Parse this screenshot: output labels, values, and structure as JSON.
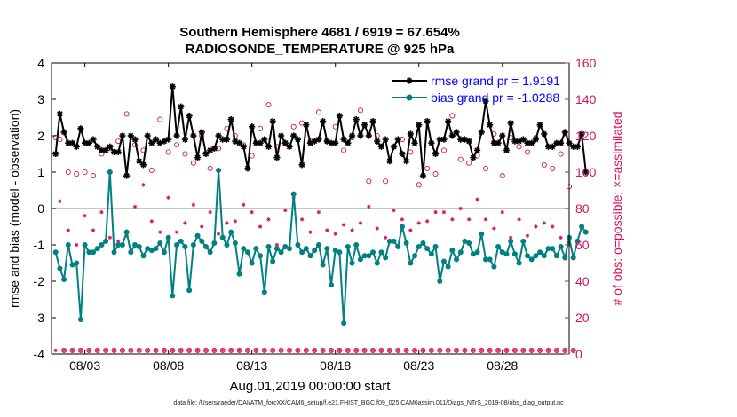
{
  "title_line1": "Southern Hemisphere 4681 / 6919 = 67.654%",
  "title_line2": "RADIOSONDE_TEMPERATURE @ 925 hPa",
  "footer": "data file: /Users/raeder/DAI/ATM_forcXX/CAM6_setup/f.e21.FHIST_BGC.f09_025.CAM6assim.011/Diags_NTrS_2019-08/obs_diag_output.nc",
  "colors": {
    "rmse": "#000000",
    "bias": "#008080",
    "obs": "#d4145a",
    "zero": "#b3b3b3",
    "legend_text": "#0000ff"
  },
  "chart_data": {
    "type": "line",
    "xlabel": "Aug.01,2019 00:00:00 start",
    "ylabel": "rmse and bias (model - observation)",
    "y2label": "# of obs: o=possible; ×=assimilated",
    "x_ticks": [
      {
        "label": "08/03",
        "day": 3
      },
      {
        "label": "08/08",
        "day": 8
      },
      {
        "label": "08/13",
        "day": 13
      },
      {
        "label": "08/18",
        "day": 18
      },
      {
        "label": "08/23",
        "day": 23
      },
      {
        "label": "08/28",
        "day": 28
      }
    ],
    "x_range": [
      1,
      32
    ],
    "ylim": [
      -4,
      4
    ],
    "yticks": [
      -4,
      -3,
      -2,
      -1,
      0,
      1,
      2,
      3,
      4
    ],
    "y2lim": [
      0,
      160
    ],
    "y2ticks": [
      0,
      20,
      40,
      60,
      80,
      100,
      120,
      140,
      160
    ],
    "legend": [
      {
        "label": "rmse grand pr = 1.9191"
      },
      {
        "label": "bias grand pr = -1.0288"
      }
    ],
    "series": [
      {
        "name": "rmse",
        "start_day": 1.25,
        "step_day": 0.25,
        "values": [
          1.5,
          2.6,
          2.1,
          1.8,
          1.8,
          1.7,
          2.2,
          1.8,
          1.8,
          1.9,
          1.7,
          1.6,
          1.6,
          1.7,
          1.55,
          1.55,
          2.0,
          0.9,
          2.0,
          1.9,
          1.3,
          1.2,
          2.0,
          1.8,
          1.9,
          1.8,
          1.85,
          1.9,
          3.35,
          2.0,
          2.8,
          1.9,
          2.55,
          2.0,
          1.4,
          2.1,
          1.5,
          1.6,
          1.65,
          2.0,
          1.9,
          1.9,
          2.45,
          1.85,
          1.8,
          1.7,
          1.1,
          2.25,
          1.8,
          1.8,
          1.9,
          1.7,
          2.4,
          1.4,
          2.0,
          1.8,
          1.7,
          2.0,
          1.9,
          1.2,
          2.3,
          1.8,
          1.85,
          1.9,
          2.4,
          1.85,
          1.8,
          1.8,
          2.55,
          1.9,
          1.8,
          2.0,
          2.45,
          2.0,
          2.3,
          2.0,
          2.4,
          1.85,
          1.7,
          1.9,
          1.3,
          1.7,
          1.9,
          1.5,
          1.3,
          2.05,
          1.8,
          2.3,
          0.9,
          2.4,
          1.8,
          1.5,
          1.9,
          1.9,
          2.4,
          2.0,
          2.1,
          1.9,
          1.9,
          1.85,
          1.4,
          1.6,
          2.1,
          2.95,
          2.3,
          1.8,
          1.8,
          2.0,
          1.6,
          2.35,
          1.85,
          1.85,
          1.9,
          1.8,
          1.8,
          1.9,
          2.3,
          2.05,
          1.7,
          1.7,
          1.8,
          1.8,
          2.1,
          1.8,
          1.7,
          1.7,
          2.05,
          1.0
        ]
      },
      {
        "name": "bias",
        "start_day": 1.25,
        "step_day": 0.25,
        "values": [
          -1.2,
          -1.65,
          -1.95,
          -1.0,
          -1.55,
          -1.5,
          -3.05,
          -1.0,
          -1.2,
          -1.2,
          -1.1,
          -1.0,
          -0.9,
          1.0,
          -1.2,
          -1.0,
          -1.0,
          -0.65,
          -1.2,
          -1.0,
          -1.05,
          -1.3,
          -1.1,
          -1.15,
          -1.1,
          -0.95,
          -1.2,
          -0.8,
          -2.4,
          -1.0,
          -0.9,
          -1.05,
          -2.25,
          -1.0,
          -0.75,
          -0.9,
          -1.05,
          -1.2,
          -0.95,
          1.05,
          -0.8,
          -1.0,
          -0.65,
          -0.95,
          -1.8,
          -1.1,
          -1.2,
          -1.5,
          -1.1,
          -1.3,
          -2.3,
          -1.05,
          -1.45,
          -1.1,
          -1.2,
          -1.05,
          -1.1,
          0.4,
          -1.0,
          -1.2,
          -1.1,
          -1.3,
          -1.15,
          -1.0,
          -1.55,
          -1.1,
          -2.1,
          -1.15,
          -1.2,
          -3.15,
          -1.05,
          -1.5,
          -1.0,
          -1.4,
          -1.3,
          -1.3,
          -1.2,
          -1.5,
          -1.2,
          -1.35,
          -0.9,
          -0.9,
          -1.05,
          -0.5,
          -0.95,
          -1.5,
          -1.3,
          -1.05,
          -0.95,
          -1.1,
          -1.25,
          -1.05,
          -2.0,
          -1.45,
          -1.6,
          -1.15,
          -1.4,
          -1.2,
          -0.9,
          -0.95,
          -1.25,
          -1.2,
          -0.7,
          -1.4,
          -1.4,
          -1.6,
          -1.05,
          -1.2,
          -1.25,
          -0.9,
          -1.25,
          -1.5,
          -0.9,
          -1.3,
          -1.4,
          -1.3,
          -1.2,
          -1.3,
          -1.1,
          -1.1,
          -1.3,
          -1.05,
          -1.35,
          -0.8,
          -1.35,
          -0.9,
          -0.5,
          -0.65
        ]
      },
      {
        "name": "obs_possible",
        "axis": "right",
        "start_day": 1.25,
        "step_day": 0.25,
        "values": [
          119,
          118,
          2,
          100,
          2,
          99,
          2,
          100,
          2,
          98,
          2,
          110,
          2,
          113,
          2,
          117,
          2,
          132,
          2,
          115,
          2,
          112,
          2,
          101,
          2,
          129,
          2,
          111,
          2,
          115,
          2,
          110,
          2,
          105,
          2,
          120,
          2,
          102,
          2,
          113,
          2,
          124,
          2,
          120,
          2,
          115,
          2,
          109,
          2,
          124,
          2,
          137,
          2,
          114,
          2,
          116,
          2,
          125,
          2,
          127,
          2,
          117,
          2,
          133,
          2,
          117,
          2,
          125,
          2,
          112,
          2,
          119,
          2,
          134,
          2,
          95,
          2,
          120,
          2,
          95,
          2,
          114,
          2,
          118,
          2,
          111,
          2,
          93,
          2,
          102,
          2,
          99,
          2,
          112,
          2,
          131,
          2,
          107,
          2,
          105,
          2,
          109,
          2,
          102,
          2,
          121,
          2,
          98,
          2,
          119,
          2,
          114,
          2,
          111,
          2,
          119,
          2,
          104,
          2,
          102,
          2,
          110,
          2,
          92,
          2
        ]
      },
      {
        "name": "obs_assimilated",
        "axis": "right",
        "start_day": 1.25,
        "step_day": 0.25,
        "values": [
          2,
          84,
          2,
          68,
          2,
          60,
          2,
          76,
          2,
          68,
          2,
          78,
          2,
          64,
          2,
          62,
          2,
          65,
          2,
          81,
          2,
          93,
          2,
          73,
          2,
          67,
          2,
          86,
          2,
          67,
          2,
          72,
          2,
          82,
          2,
          70,
          2,
          78,
          2,
          66,
          2,
          72,
          2,
          73,
          2,
          82,
          2,
          78,
          2,
          70,
          2,
          74,
          2,
          60,
          2,
          79,
          2,
          86,
          2,
          74,
          2,
          67,
          2,
          78,
          2,
          68,
          2,
          66,
          2,
          71,
          2,
          68,
          2,
          72,
          2,
          81,
          2,
          69,
          2,
          64,
          2,
          79,
          2,
          74,
          2,
          68,
          2,
          72,
          2,
          73,
          2,
          78,
          2,
          78,
          2,
          74,
          2,
          80,
          2,
          74,
          2,
          85,
          2,
          74,
          2,
          69,
          2,
          78,
          2,
          64,
          2,
          74,
          2,
          65,
          2,
          70,
          2,
          72,
          2,
          70,
          2,
          64,
          2,
          60,
          2
        ]
      }
    ]
  }
}
